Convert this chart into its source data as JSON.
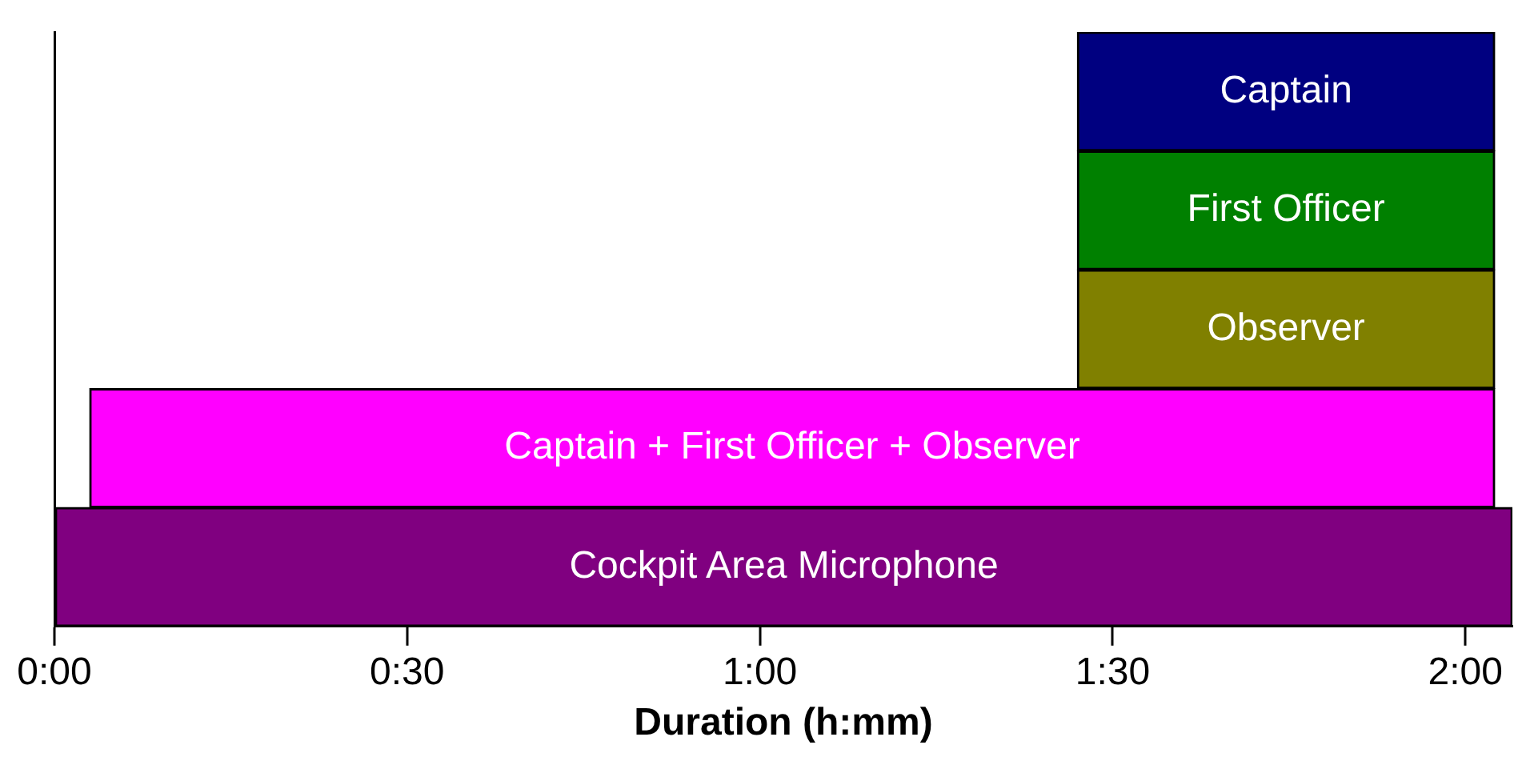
{
  "chart_data": {
    "type": "bar",
    "orientation": "horizontal",
    "xlabel": "Duration (h:mm)",
    "categories": [
      "Captain",
      "First Officer",
      "Observer",
      "Captain + First Officer + Observer",
      "Cockpit Area Microphone"
    ],
    "base": [
      87,
      87,
      87,
      3,
      0
    ],
    "values": [
      35.5,
      35.5,
      35.5,
      119.5,
      124
    ],
    "colors": [
      "#000080",
      "#008000",
      "#808000",
      "#ff00ff",
      "#800080"
    ],
    "xlim": [
      0,
      124
    ],
    "xticks": [
      {
        "value": 0,
        "label": "0:00"
      },
      {
        "value": 30,
        "label": "0:30"
      },
      {
        "value": 60,
        "label": "1:00"
      },
      {
        "value": 90,
        "label": "1:30"
      },
      {
        "value": 120,
        "label": "2:00"
      }
    ],
    "tick_labels": "x",
    "grid": false,
    "legend": false
  }
}
